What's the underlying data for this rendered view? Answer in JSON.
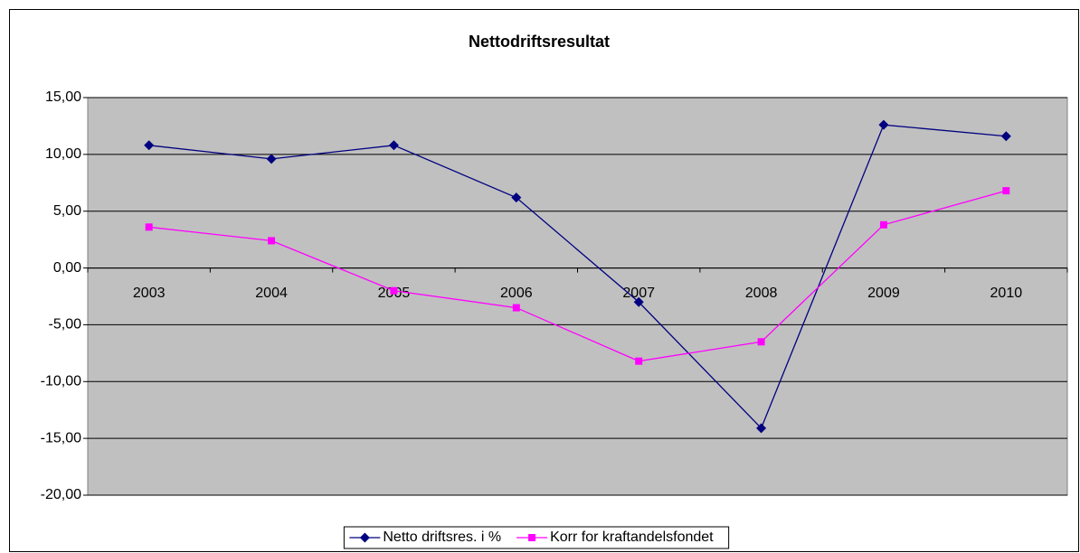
{
  "chart_data": {
    "type": "line",
    "title": "Nettodriftsresultat",
    "categories": [
      "2003",
      "2004",
      "2005",
      "2006",
      "2007",
      "2008",
      "2009",
      "2010"
    ],
    "series": [
      {
        "name": "Netto driftsres. i %",
        "color": "#000080",
        "marker": "diamond",
        "values": [
          10.8,
          9.6,
          10.8,
          6.2,
          -3.0,
          -14.1,
          12.6,
          11.6
        ]
      },
      {
        "name": "Korr for kraftandelsfondet",
        "color": "#ff00ff",
        "marker": "square",
        "values": [
          3.6,
          2.4,
          -2.0,
          -3.5,
          -8.2,
          -6.5,
          3.8,
          6.8
        ]
      }
    ],
    "ylim": [
      -20,
      15
    ],
    "yticks": [
      {
        "value": -20,
        "label": "-20,00"
      },
      {
        "value": -15,
        "label": "-15,00"
      },
      {
        "value": -10,
        "label": "-10,00"
      },
      {
        "value": -5,
        "label": "-5,00"
      },
      {
        "value": 0,
        "label": "0,00"
      },
      {
        "value": 5,
        "label": "5,00"
      },
      {
        "value": 10,
        "label": "10,00"
      },
      {
        "value": 15,
        "label": "15,00"
      }
    ],
    "grid": true,
    "legend": "bottom"
  }
}
